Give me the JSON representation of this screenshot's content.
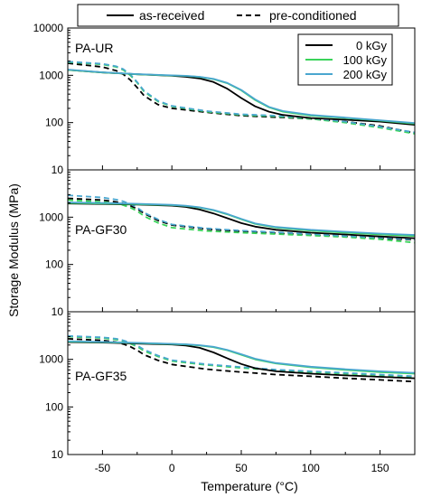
{
  "chart_data": {
    "type": "line",
    "xlabel": "Temperature (°C)",
    "ylabel": "Storage Modulus (MPa)",
    "xlim": [
      -75,
      175
    ],
    "ylim": [
      10,
      10000
    ],
    "yscale": "log",
    "x_ticks": [
      -50,
      0,
      50,
      100,
      150
    ],
    "y_ticks": [
      10,
      100,
      1000,
      10000
    ],
    "linestyle_legend": [
      {
        "label": "as-received",
        "style": "solid"
      },
      {
        "label": "pre-conditioned",
        "style": "dashed"
      }
    ],
    "dose_legend": [
      {
        "label": "0 kGy",
        "color": "#000000"
      },
      {
        "label": "100 kGy",
        "color": "#3ad35a"
      },
      {
        "label": "200 kGy",
        "color": "#4aa6cf"
      }
    ],
    "panels": [
      {
        "label": "PA-UR",
        "series": [
          {
            "dose": "0 kGy",
            "condition": "as-received",
            "x": [
              -75,
              -50,
              -25,
              0,
              10,
              20,
              30,
              40,
              50,
              60,
              70,
              80,
              100,
              125,
              150,
              175
            ],
            "y": [
              1300,
              1150,
              1050,
              980,
              930,
              860,
              720,
              520,
              330,
              220,
              170,
              145,
              125,
              115,
              105,
              90
            ]
          },
          {
            "dose": "100 kGy",
            "condition": "as-received",
            "x": [
              -75,
              -50,
              -25,
              0,
              10,
              20,
              30,
              40,
              50,
              60,
              70,
              80,
              100,
              125,
              150,
              175
            ],
            "y": [
              1300,
              1150,
              1050,
              990,
              970,
              920,
              830,
              680,
              480,
              300,
              210,
              170,
              140,
              125,
              110,
              95
            ]
          },
          {
            "dose": "200 kGy",
            "condition": "as-received",
            "x": [
              -75,
              -50,
              -25,
              0,
              10,
              20,
              30,
              40,
              50,
              60,
              70,
              80,
              100,
              125,
              150,
              175
            ],
            "y": [
              1320,
              1160,
              1060,
              995,
              975,
              930,
              840,
              690,
              490,
              310,
              215,
              175,
              145,
              128,
              112,
              98
            ]
          },
          {
            "dose": "0 kGy",
            "condition": "pre-conditioned",
            "x": [
              -75,
              -50,
              -40,
              -35,
              -30,
              -25,
              -20,
              -10,
              0,
              25,
              50,
              75,
              100,
              125,
              150,
              175
            ],
            "y": [
              1800,
              1500,
              1250,
              1050,
              800,
              550,
              370,
              240,
              200,
              165,
              140,
              130,
              120,
              105,
              85,
              60
            ]
          },
          {
            "dose": "100 kGy",
            "condition": "pre-conditioned",
            "x": [
              -75,
              -50,
              -40,
              -35,
              -30,
              -25,
              -20,
              -10,
              0,
              25,
              50,
              75,
              100,
              125,
              150,
              175
            ],
            "y": [
              1900,
              1700,
              1500,
              1300,
              1000,
              700,
              450,
              280,
              220,
              170,
              145,
              135,
              120,
              100,
              78,
              58
            ]
          },
          {
            "dose": "200 kGy",
            "condition": "pre-conditioned",
            "x": [
              -75,
              -50,
              -40,
              -35,
              -30,
              -25,
              -20,
              -10,
              0,
              25,
              50,
              75,
              100,
              125,
              150,
              175
            ],
            "y": [
              1950,
              1750,
              1550,
              1350,
              1050,
              720,
              470,
              290,
              225,
              175,
              150,
              140,
              125,
              105,
              82,
              62
            ]
          }
        ]
      },
      {
        "label": "PA-GF30",
        "series": [
          {
            "dose": "0 kGy",
            "condition": "as-received",
            "x": [
              -75,
              -50,
              -25,
              0,
              10,
              20,
              30,
              40,
              50,
              60,
              75,
              100,
              125,
              150,
              175
            ],
            "y": [
              1950,
              1900,
              1850,
              1750,
              1650,
              1450,
              1200,
              950,
              750,
              630,
              540,
              470,
              430,
              390,
              360
            ]
          },
          {
            "dose": "100 kGy",
            "condition": "as-received",
            "x": [
              -75,
              -50,
              -25,
              0,
              10,
              20,
              30,
              40,
              50,
              60,
              75,
              100,
              125,
              150,
              175
            ],
            "y": [
              2000,
              1950,
              1880,
              1800,
              1720,
              1600,
              1400,
              1150,
              900,
              720,
              600,
              520,
              470,
              430,
              400
            ]
          },
          {
            "dose": "200 kGy",
            "condition": "as-received",
            "x": [
              -75,
              -50,
              -25,
              0,
              10,
              20,
              30,
              40,
              50,
              60,
              75,
              100,
              125,
              150,
              175
            ],
            "y": [
              2050,
              2000,
              1920,
              1820,
              1740,
              1620,
              1420,
              1170,
              920,
              740,
              620,
              540,
              490,
              450,
              420
            ]
          },
          {
            "dose": "0 kGy",
            "condition": "pre-conditioned",
            "x": [
              -75,
              -50,
              -40,
              -35,
              -30,
              -25,
              -20,
              -10,
              0,
              25,
              50,
              75,
              100,
              125,
              150,
              175
            ],
            "y": [
              2500,
              2300,
              2100,
              1950,
              1750,
              1500,
              1200,
              850,
              680,
              560,
              500,
              460,
              420,
              390,
              360,
              330
            ]
          },
          {
            "dose": "100 kGy",
            "condition": "pre-conditioned",
            "x": [
              -75,
              -50,
              -40,
              -35,
              -30,
              -25,
              -20,
              -10,
              0,
              25,
              50,
              75,
              100,
              125,
              150,
              175
            ],
            "y": [
              2300,
              2100,
              1950,
              1800,
              1600,
              1350,
              1050,
              760,
              600,
              510,
              470,
              440,
              410,
              380,
              340,
              290
            ]
          },
          {
            "dose": "200 kGy",
            "condition": "pre-conditioned",
            "x": [
              -75,
              -50,
              -40,
              -35,
              -30,
              -25,
              -20,
              -10,
              0,
              25,
              50,
              75,
              100,
              125,
              150,
              175
            ],
            "y": [
              2900,
              2600,
              2350,
              2150,
              1900,
              1600,
              1250,
              900,
              700,
              580,
              520,
              480,
              440,
              400,
              370,
              340
            ]
          }
        ]
      },
      {
        "label": "PA-GF35",
        "series": [
          {
            "dose": "0 kGy",
            "condition": "as-received",
            "x": [
              -75,
              -50,
              -25,
              0,
              10,
              20,
              30,
              40,
              50,
              60,
              75,
              100,
              125,
              150,
              175
            ],
            "y": [
              2300,
              2250,
              2150,
              2050,
              1950,
              1750,
              1400,
              1050,
              800,
              650,
              560,
              500,
              460,
              430,
              400
            ]
          },
          {
            "dose": "100 kGy",
            "condition": "as-received",
            "x": [
              -75,
              -50,
              -25,
              0,
              10,
              20,
              30,
              40,
              50,
              60,
              75,
              100,
              125,
              150,
              175
            ],
            "y": [
              2350,
              2300,
              2200,
              2100,
              2050,
              1950,
              1800,
              1550,
              1250,
              1000,
              820,
              680,
              600,
              540,
              500
            ]
          },
          {
            "dose": "200 kGy",
            "condition": "as-received",
            "x": [
              -75,
              -50,
              -25,
              0,
              10,
              20,
              30,
              40,
              50,
              60,
              75,
              100,
              125,
              150,
              175
            ],
            "y": [
              2400,
              2320,
              2220,
              2120,
              2070,
              1980,
              1830,
              1580,
              1280,
              1030,
              840,
              700,
              620,
              560,
              520
            ]
          },
          {
            "dose": "0 kGy",
            "condition": "pre-conditioned",
            "x": [
              -75,
              -50,
              -40,
              -35,
              -30,
              -25,
              -20,
              -10,
              0,
              25,
              50,
              75,
              100,
              125,
              150,
              175
            ],
            "y": [
              2700,
              2500,
              2300,
              2100,
              1850,
              1550,
              1250,
              950,
              780,
              620,
              540,
              480,
              440,
              400,
              370,
              340
            ]
          },
          {
            "dose": "100 kGy",
            "condition": "pre-conditioned",
            "x": [
              -75,
              -50,
              -40,
              -35,
              -30,
              -25,
              -20,
              -10,
              0,
              25,
              50,
              75,
              100,
              125,
              150,
              175
            ],
            "y": [
              3000,
              2800,
              2600,
              2400,
              2150,
              1850,
              1500,
              1150,
              920,
              760,
              660,
              590,
              540,
              500,
              460,
              420
            ]
          },
          {
            "dose": "200 kGy",
            "condition": "pre-conditioned",
            "x": [
              -75,
              -50,
              -40,
              -35,
              -30,
              -25,
              -20,
              -10,
              0,
              25,
              50,
              75,
              100,
              125,
              150,
              175
            ],
            "y": [
              3100,
              2900,
              2700,
              2500,
              2250,
              1950,
              1600,
              1200,
              960,
              790,
              690,
              610,
              560,
              520,
              480,
              440
            ]
          }
        ]
      }
    ]
  }
}
